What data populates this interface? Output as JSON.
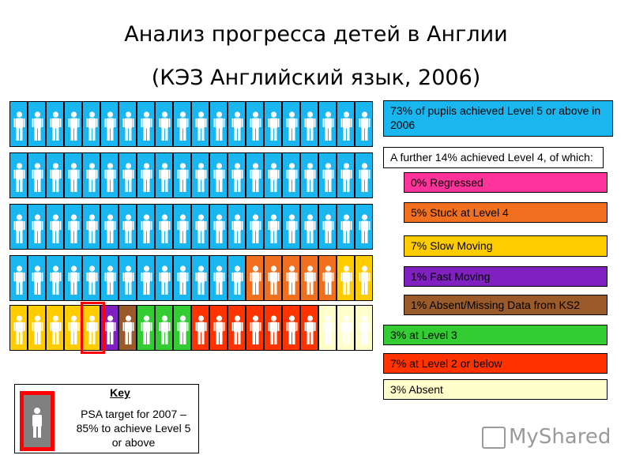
{
  "title_line1": "Анализ прогресса детей в Англии",
  "title_line2": "(КЭЗ Английский язык, 2006)",
  "colors": {
    "blue": "#1ab6f0",
    "orange": "#f07020",
    "yellow": "#ffcc00",
    "purple": "#8020c0",
    "brown": "#9a5a2a",
    "green": "#33cc33",
    "red": "#ff3300",
    "cream": "#ffffcc",
    "pink": "#ff3399"
  },
  "grid": [
    [
      "blue",
      "blue",
      "blue",
      "blue",
      "blue",
      "blue",
      "blue",
      "blue",
      "blue",
      "blue",
      "blue",
      "blue",
      "blue",
      "blue",
      "blue",
      "blue",
      "blue",
      "blue",
      "blue",
      "blue"
    ],
    [
      "blue",
      "blue",
      "blue",
      "blue",
      "blue",
      "blue",
      "blue",
      "blue",
      "blue",
      "blue",
      "blue",
      "blue",
      "blue",
      "blue",
      "blue",
      "blue",
      "blue",
      "blue",
      "blue",
      "blue"
    ],
    [
      "blue",
      "blue",
      "blue",
      "blue",
      "blue",
      "blue",
      "blue",
      "blue",
      "blue",
      "blue",
      "blue",
      "blue",
      "blue",
      "blue",
      "blue",
      "blue",
      "blue",
      "blue",
      "blue",
      "blue"
    ],
    [
      "blue",
      "blue",
      "blue",
      "blue",
      "blue",
      "blue",
      "blue",
      "blue",
      "blue",
      "blue",
      "blue",
      "blue",
      "blue",
      "orange",
      "orange",
      "orange",
      "orange",
      "orange",
      "yellow",
      "yellow"
    ],
    [
      "yellow",
      "yellow",
      "yellow",
      "yellow",
      "yellow",
      "purple",
      "brown",
      "green",
      "green",
      "green",
      "red",
      "red",
      "red",
      "red",
      "red",
      "red",
      "red",
      "cream",
      "cream",
      "cream"
    ]
  ],
  "legend": [
    {
      "text": "73% of pupils achieved Level 5 or above in 2006",
      "color": "#1ab6f0"
    },
    {
      "text": "A further 14% achieved Level 4, of which:",
      "color": "#ffffff"
    },
    {
      "text": "0% Regressed",
      "color": "#ff3399"
    },
    {
      "text": "5% Stuck at Level 4",
      "color": "#f07020"
    },
    {
      "text": "7% Slow Moving",
      "color": "#ffcc00"
    },
    {
      "text": "1% Fast Moving",
      "color": "#8020c0"
    },
    {
      "text": "1% Absent/Missing Data from KS2",
      "color": "#9a5a2a"
    },
    {
      "text": "3% at Level 3",
      "color": "#33cc33"
    },
    {
      "text": "7% at Level 2 or below",
      "color": "#ff3300"
    },
    {
      "text": "3% Absent",
      "color": "#ffffcc"
    }
  ],
  "key": {
    "title": "Key",
    "text": "PSA target for 2007 – 85% to achieve Level 5 or above"
  },
  "watermark": "MyShared"
}
